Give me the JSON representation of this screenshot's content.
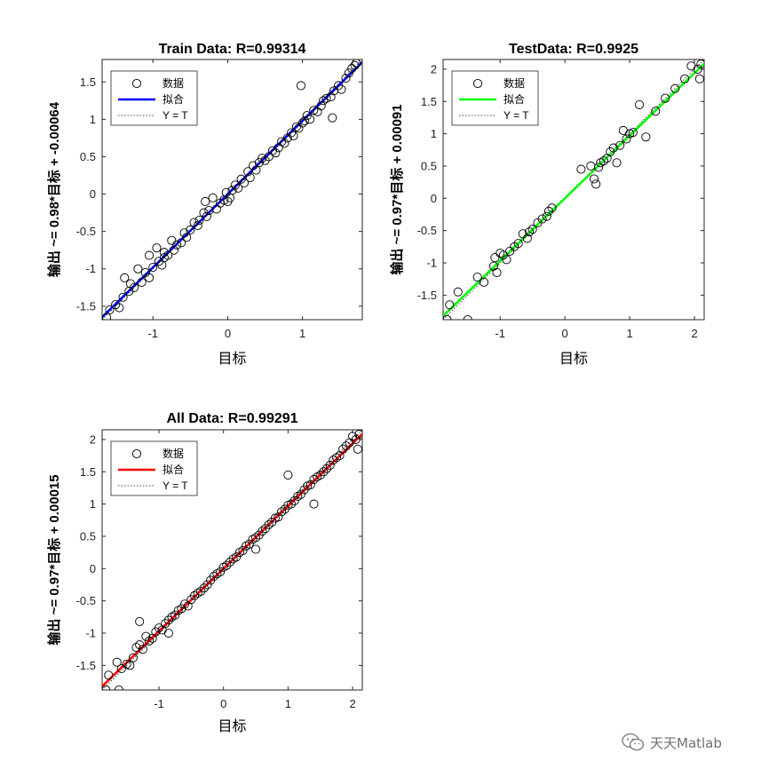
{
  "chart_data": [
    {
      "type": "scatter",
      "title": "Train Data: R=0.99314",
      "xlabel": "目标",
      "ylabel": "输出 ~= 0.98*目标 + -0.00064",
      "xlim": [
        -1.68,
        1.8
      ],
      "ylim": [
        -1.68,
        1.8
      ],
      "xticks": [
        -1,
        0,
        1
      ],
      "yticks": [
        -1.5,
        -1,
        -0.5,
        0,
        0.5,
        1,
        1.5
      ],
      "legend": {
        "position": "top-left",
        "entries": [
          "数据",
          "拟合",
          "Y = T"
        ]
      },
      "fit": {
        "slope": 0.98,
        "intercept": -0.00064,
        "color": "#0000ff"
      },
      "series": [
        {
          "name": "数据",
          "x": [
            -1.62,
            -1.58,
            -1.5,
            -1.45,
            -1.4,
            -1.38,
            -1.32,
            -1.3,
            -1.25,
            -1.2,
            -1.15,
            -1.1,
            -1.05,
            -1.0,
            -0.95,
            -0.92,
            -0.88,
            -0.85,
            -0.8,
            -0.75,
            -0.72,
            -0.68,
            -0.62,
            -0.58,
            -0.55,
            -0.5,
            -0.45,
            -0.4,
            -0.38,
            -0.32,
            -0.28,
            -0.25,
            -0.2,
            -0.15,
            -0.1,
            -0.05,
            -0.02,
            0.0,
            0.03,
            0.06,
            0.1,
            0.14,
            0.18,
            0.22,
            0.27,
            0.3,
            0.34,
            0.38,
            0.42,
            0.46,
            0.5,
            0.55,
            0.6,
            0.64,
            0.68,
            0.72,
            0.76,
            0.8,
            0.85,
            0.88,
            0.92,
            0.95,
            1.0,
            1.03,
            1.06,
            1.1,
            1.15,
            1.2,
            1.25,
            1.28,
            1.32,
            1.38,
            1.42,
            1.48,
            1.52,
            1.58,
            1.62,
            1.66,
            1.7,
            1.72,
            0.98,
            1.4,
            -1.05,
            -0.85,
            -0.3
          ],
          "y": [
            -1.65,
            -1.55,
            -1.48,
            -1.52,
            -1.38,
            -1.12,
            -1.3,
            -1.2,
            -1.25,
            -1.0,
            -1.18,
            -1.05,
            -1.12,
            -0.98,
            -0.72,
            -0.9,
            -0.95,
            -0.78,
            -0.82,
            -0.62,
            -0.75,
            -0.68,
            -0.65,
            -0.52,
            -0.58,
            -0.48,
            -0.38,
            -0.42,
            -0.35,
            -0.25,
            -0.3,
            -0.22,
            -0.05,
            -0.2,
            -0.12,
            -0.08,
            0.02,
            -0.1,
            -0.05,
            0.05,
            0.12,
            0.08,
            0.2,
            0.15,
            0.3,
            0.22,
            0.38,
            0.32,
            0.42,
            0.48,
            0.45,
            0.5,
            0.58,
            0.55,
            0.62,
            0.7,
            0.68,
            0.75,
            0.82,
            0.78,
            0.9,
            0.88,
            0.95,
            0.98,
            1.05,
            1.0,
            1.12,
            1.1,
            1.18,
            1.25,
            1.28,
            1.3,
            1.38,
            1.45,
            1.4,
            1.55,
            1.62,
            1.68,
            1.72,
            1.75,
            1.45,
            1.02,
            -0.82,
            -0.85,
            -0.1
          ]
        }
      ]
    },
    {
      "type": "scatter",
      "title": "TestData: R=0.9925",
      "xlabel": "目标",
      "ylabel": "输出 ~= 0.97*目标 + 0.00091",
      "xlim": [
        -1.88,
        2.15
      ],
      "ylim": [
        -1.88,
        2.15
      ],
      "xticks": [
        -1,
        0,
        1,
        2
      ],
      "yticks": [
        -1.5,
        -1,
        -0.5,
        0,
        0.5,
        1,
        1.5,
        2
      ],
      "legend": {
        "position": "top-left",
        "entries": [
          "数据",
          "拟合",
          "Y = T"
        ]
      },
      "fit": {
        "slope": 0.97,
        "intercept": 0.00091,
        "color": "#00ff00"
      },
      "series": [
        {
          "name": "数据",
          "x": [
            -1.82,
            -1.78,
            -1.65,
            -1.5,
            -1.35,
            -1.25,
            -1.1,
            -1.08,
            -1.05,
            -1.0,
            -0.95,
            -0.9,
            -0.85,
            -0.78,
            -0.72,
            -0.65,
            -0.58,
            -0.55,
            -0.5,
            -0.42,
            -0.35,
            -0.28,
            -0.25,
            -0.2,
            0.25,
            0.4,
            0.45,
            0.48,
            0.52,
            0.55,
            0.6,
            0.65,
            0.7,
            0.75,
            0.8,
            0.85,
            0.9,
            0.95,
            1.0,
            1.05,
            1.15,
            1.25,
            1.4,
            1.55,
            1.7,
            1.85,
            1.95,
            2.05,
            2.08,
            2.1
          ],
          "y": [
            -1.88,
            -1.65,
            -1.45,
            -1.88,
            -1.22,
            -1.3,
            -1.05,
            -0.92,
            -1.15,
            -0.85,
            -0.88,
            -0.95,
            -0.82,
            -0.75,
            -0.7,
            -0.55,
            -0.62,
            -0.52,
            -0.48,
            -0.38,
            -0.32,
            -0.28,
            -0.2,
            -0.15,
            0.45,
            0.5,
            0.3,
            0.22,
            0.48,
            0.55,
            0.58,
            0.62,
            0.72,
            0.78,
            0.55,
            0.82,
            1.05,
            0.92,
            1.0,
            1.02,
            1.45,
            0.95,
            1.35,
            1.55,
            1.7,
            1.85,
            2.05,
            2.0,
            1.85,
            2.08
          ]
        }
      ]
    },
    {
      "type": "scatter",
      "title": "All Data: R=0.99291",
      "xlabel": "目标",
      "ylabel": "输出 ~= 0.97*目标 + 0.00015",
      "xlim": [
        -1.88,
        2.15
      ],
      "ylim": [
        -1.88,
        2.15
      ],
      "xticks": [
        -1,
        0,
        1,
        2
      ],
      "yticks": [
        -1.5,
        -1,
        -0.5,
        0,
        0.5,
        1,
        1.5,
        2
      ],
      "legend": {
        "position": "top-left",
        "entries": [
          "数据",
          "拟合",
          "Y = T"
        ]
      },
      "fit": {
        "slope": 0.97,
        "intercept": 0.00015,
        "color": "#ff0000"
      },
      "series": [
        {
          "name": "数据",
          "x": [
            -1.82,
            -1.78,
            -1.65,
            -1.62,
            -1.58,
            -1.5,
            -1.45,
            -1.4,
            -1.35,
            -1.3,
            -1.25,
            -1.2,
            -1.15,
            -1.1,
            -1.05,
            -1.0,
            -0.95,
            -0.9,
            -0.85,
            -0.8,
            -0.75,
            -0.7,
            -0.65,
            -0.6,
            -0.55,
            -0.5,
            -0.45,
            -0.4,
            -0.35,
            -0.3,
            -0.25,
            -0.2,
            -0.15,
            -0.1,
            -0.05,
            0.0,
            0.05,
            0.1,
            0.15,
            0.2,
            0.25,
            0.3,
            0.35,
            0.4,
            0.45,
            0.5,
            0.55,
            0.6,
            0.65,
            0.7,
            0.75,
            0.8,
            0.85,
            0.9,
            0.95,
            1.0,
            1.05,
            1.1,
            1.15,
            1.2,
            1.25,
            1.3,
            1.35,
            1.4,
            1.45,
            1.5,
            1.55,
            1.6,
            1.65,
            1.7,
            1.75,
            1.8,
            1.85,
            1.9,
            1.95,
            2.0,
            2.05,
            2.08,
            2.1,
            1.0,
            1.4,
            -1.3,
            -0.85,
            0.5
          ],
          "y": [
            -1.88,
            -1.65,
            -1.45,
            -1.88,
            -1.55,
            -1.48,
            -1.5,
            -1.38,
            -1.22,
            -1.18,
            -1.25,
            -1.05,
            -1.12,
            -1.08,
            -0.98,
            -0.92,
            -0.95,
            -0.85,
            -0.8,
            -0.75,
            -0.72,
            -0.65,
            -0.62,
            -0.55,
            -0.58,
            -0.48,
            -0.42,
            -0.38,
            -0.35,
            -0.3,
            -0.25,
            -0.18,
            -0.12,
            -0.08,
            -0.05,
            0.02,
            0.05,
            0.1,
            0.15,
            0.18,
            0.25,
            0.28,
            0.35,
            0.38,
            0.45,
            0.48,
            0.52,
            0.58,
            0.62,
            0.68,
            0.72,
            0.78,
            0.8,
            0.88,
            0.92,
            0.98,
            1.0,
            1.05,
            1.12,
            1.15,
            1.22,
            1.28,
            1.3,
            1.38,
            1.42,
            1.45,
            1.5,
            1.55,
            1.6,
            1.68,
            1.72,
            1.75,
            1.85,
            1.9,
            1.95,
            2.05,
            2.0,
            1.85,
            2.08,
            1.45,
            1.0,
            -0.82,
            -1.0,
            0.3
          ]
        }
      ]
    }
  ],
  "watermark": {
    "text": "天天Matlab",
    "icon": "wechat-icon"
  }
}
